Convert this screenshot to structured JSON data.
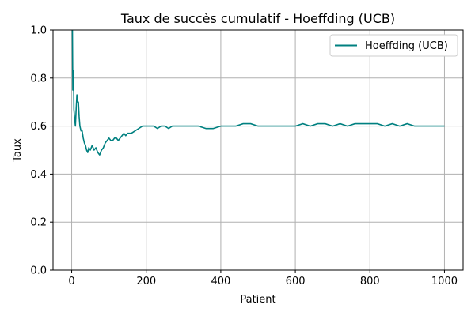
{
  "chart_data": {
    "type": "line",
    "title": "Taux de succès cumulatif - Hoeffding (UCB)",
    "xlabel": "Patient",
    "ylabel": "Taux",
    "xlim": [
      -50,
      1050
    ],
    "ylim": [
      0.0,
      1.0
    ],
    "xticks": [
      0,
      200,
      400,
      600,
      800,
      1000
    ],
    "yticks": [
      0.0,
      0.2,
      0.4,
      0.6,
      0.8,
      1.0
    ],
    "xtick_labels": [
      "0",
      "200",
      "400",
      "600",
      "800",
      "1000"
    ],
    "ytick_labels": [
      "0.0",
      "0.2",
      "0.4",
      "0.6",
      "0.8",
      "1.0"
    ],
    "grid": true,
    "legend_position": "top-right",
    "series": [
      {
        "name": "Hoeffding (UCB)",
        "color": "#008080",
        "x": [
          1,
          2,
          3,
          4,
          5,
          6,
          8,
          10,
          12,
          14,
          16,
          18,
          20,
          22,
          25,
          28,
          31,
          34,
          37,
          40,
          43,
          46,
          50,
          55,
          60,
          65,
          70,
          75,
          80,
          85,
          90,
          95,
          100,
          105,
          110,
          115,
          120,
          125,
          130,
          135,
          140,
          145,
          150,
          160,
          170,
          180,
          190,
          200,
          210,
          220,
          230,
          240,
          250,
          260,
          270,
          280,
          290,
          300,
          320,
          340,
          360,
          380,
          400,
          420,
          440,
          460,
          480,
          500,
          520,
          540,
          560,
          580,
          600,
          620,
          640,
          660,
          680,
          700,
          720,
          740,
          760,
          780,
          800,
          820,
          840,
          860,
          880,
          900,
          920,
          940,
          960,
          980,
          1000
        ],
        "y": [
          1.0,
          1.0,
          0.75,
          0.8,
          0.83,
          0.67,
          0.63,
          0.6,
          0.67,
          0.73,
          0.7,
          0.7,
          0.64,
          0.6,
          0.58,
          0.58,
          0.55,
          0.53,
          0.52,
          0.5,
          0.49,
          0.51,
          0.5,
          0.52,
          0.5,
          0.51,
          0.49,
          0.48,
          0.5,
          0.51,
          0.53,
          0.54,
          0.55,
          0.54,
          0.54,
          0.55,
          0.55,
          0.54,
          0.55,
          0.56,
          0.57,
          0.56,
          0.57,
          0.57,
          0.58,
          0.59,
          0.6,
          0.6,
          0.6,
          0.6,
          0.59,
          0.6,
          0.6,
          0.59,
          0.6,
          0.6,
          0.6,
          0.6,
          0.6,
          0.6,
          0.59,
          0.59,
          0.6,
          0.6,
          0.6,
          0.61,
          0.61,
          0.6,
          0.6,
          0.6,
          0.6,
          0.6,
          0.6,
          0.61,
          0.6,
          0.61,
          0.61,
          0.6,
          0.61,
          0.6,
          0.61,
          0.61,
          0.61,
          0.61,
          0.6,
          0.61,
          0.6,
          0.61,
          0.6,
          0.6,
          0.6,
          0.6,
          0.6
        ]
      }
    ]
  }
}
